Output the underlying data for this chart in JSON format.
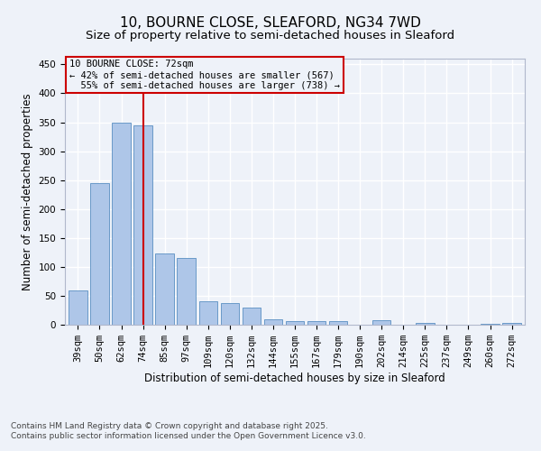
{
  "title_line1": "10, BOURNE CLOSE, SLEAFORD, NG34 7WD",
  "title_line2": "Size of property relative to semi-detached houses in Sleaford",
  "xlabel": "Distribution of semi-detached houses by size in Sleaford",
  "ylabel": "Number of semi-detached properties",
  "categories": [
    "39sqm",
    "50sqm",
    "62sqm",
    "74sqm",
    "85sqm",
    "97sqm",
    "109sqm",
    "120sqm",
    "132sqm",
    "144sqm",
    "155sqm",
    "167sqm",
    "179sqm",
    "190sqm",
    "202sqm",
    "214sqm",
    "225sqm",
    "237sqm",
    "249sqm",
    "260sqm",
    "272sqm"
  ],
  "values": [
    60,
    245,
    350,
    345,
    123,
    115,
    40,
    38,
    30,
    10,
    6,
    7,
    7,
    0,
    8,
    0,
    3,
    0,
    0,
    2,
    3
  ],
  "bar_color": "#aec6e8",
  "bar_edge_color": "#5a8fc2",
  "property_label": "10 BOURNE CLOSE: 72sqm",
  "pct_smaller": 42,
  "count_smaller": 567,
  "pct_larger": 55,
  "count_larger": 738,
  "marker_bin_index": 3,
  "vline_color": "#cc0000",
  "annotation_box_edge": "#cc0000",
  "ylim": [
    0,
    460
  ],
  "yticks": [
    0,
    50,
    100,
    150,
    200,
    250,
    300,
    350,
    400,
    450
  ],
  "footer_line1": "Contains HM Land Registry data © Crown copyright and database right 2025.",
  "footer_line2": "Contains public sector information licensed under the Open Government Licence v3.0.",
  "background_color": "#eef2f9",
  "grid_color": "#ffffff",
  "title_fontsize": 11,
  "subtitle_fontsize": 9.5,
  "axis_label_fontsize": 8.5,
  "tick_fontsize": 7.5,
  "annotation_fontsize": 7.5,
  "footer_fontsize": 6.5
}
